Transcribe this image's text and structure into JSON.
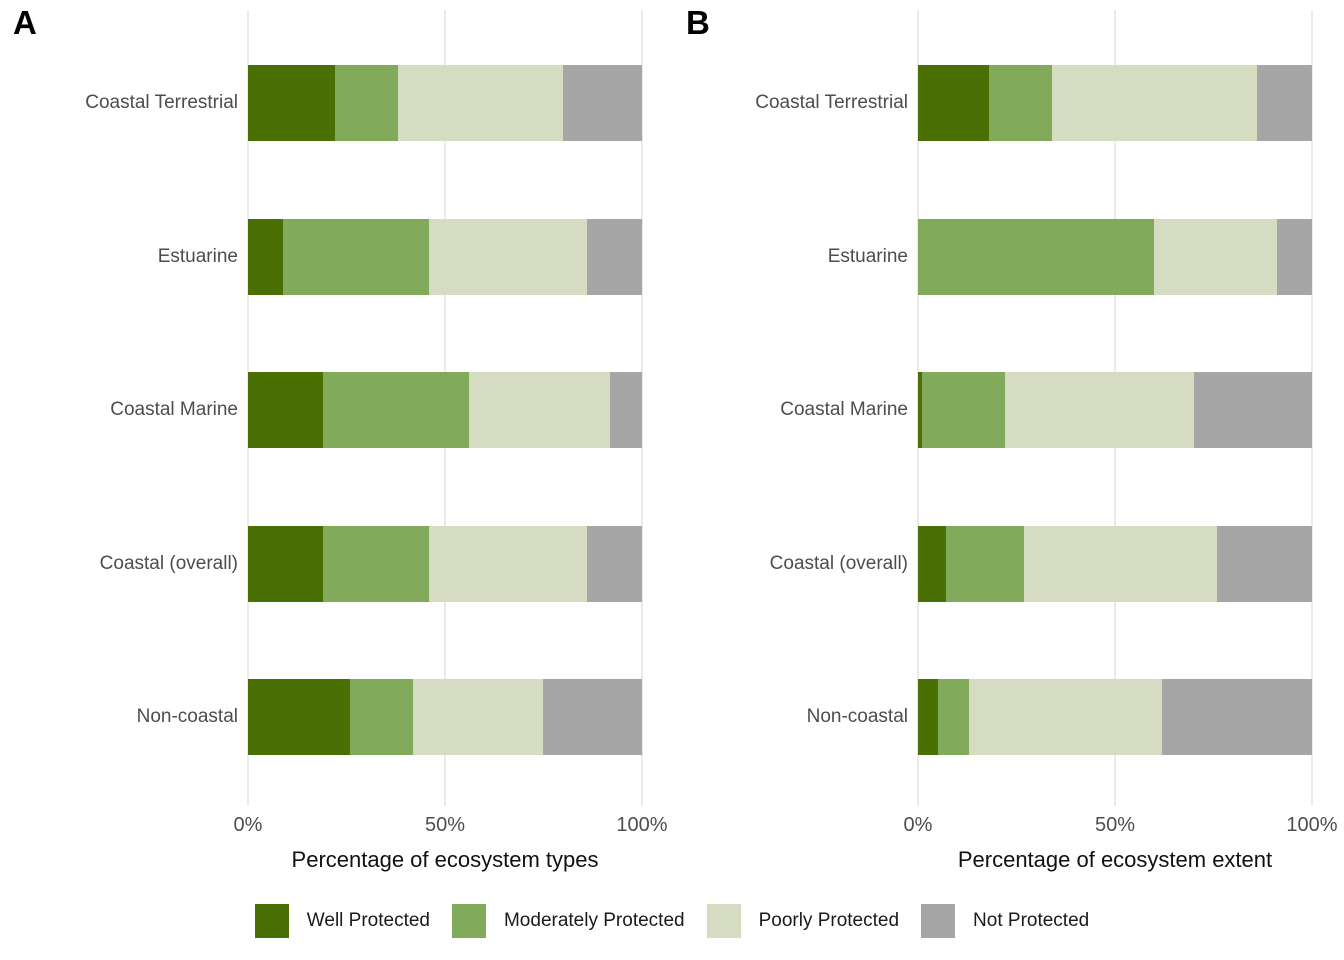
{
  "figure": {
    "tags": {
      "a": "A",
      "b": "B"
    },
    "background_color": "#FFFFFF",
    "gridline_color": "#EAEAEA",
    "axis_text_color": "#4D4D4D",
    "legend": [
      {
        "label": "Well Protected",
        "color": "#4A7003",
        "icon": "swatch-dark-green"
      },
      {
        "label": "Moderately Protected",
        "color": "#81AA5A",
        "icon": "swatch-medium-green"
      },
      {
        "label": "Poorly Protected",
        "color": "#D5DCC2",
        "icon": "swatch-light-green"
      },
      {
        "label": "Not Protected",
        "color": "#A6A6A6",
        "icon": "swatch-gray"
      }
    ]
  },
  "chart_data": [
    {
      "type": "bar",
      "panel_tag": "A",
      "orientation": "horizontal",
      "stacked": true,
      "stack_total": 100,
      "xlabel": "Percentage of ecosystem types",
      "ylabel": "",
      "xlim": [
        0,
        100
      ],
      "xticks": [
        {
          "value": 0,
          "label": "0%"
        },
        {
          "value": 50,
          "label": "50%"
        },
        {
          "value": 100,
          "label": "100%"
        }
      ],
      "grid": "major-vertical-only",
      "legend_position": "bottom-shared",
      "categories": [
        "Coastal Terrestrial",
        "Estuarine",
        "Coastal Marine",
        "Coastal (overall)",
        "Non-coastal"
      ],
      "series": [
        {
          "name": "Well Protected",
          "values": [
            22,
            9,
            19,
            19,
            26
          ]
        },
        {
          "name": "Moderately Protected",
          "values": [
            16,
            37,
            37,
            27,
            16
          ]
        },
        {
          "name": "Poorly Protected",
          "values": [
            42,
            40,
            36,
            40,
            33
          ]
        },
        {
          "name": "Not Protected",
          "values": [
            20,
            14,
            8,
            14,
            25
          ]
        }
      ]
    },
    {
      "type": "bar",
      "panel_tag": "B",
      "orientation": "horizontal",
      "stacked": true,
      "stack_total": 100,
      "xlabel": "Percentage of ecosystem extent",
      "ylabel": "",
      "xlim": [
        0,
        100
      ],
      "xticks": [
        {
          "value": 0,
          "label": "0%"
        },
        {
          "value": 50,
          "label": "50%"
        },
        {
          "value": 100,
          "label": "100%"
        }
      ],
      "grid": "major-vertical-only",
      "legend_position": "bottom-shared",
      "categories": [
        "Coastal Terrestrial",
        "Estuarine",
        "Coastal Marine",
        "Coastal (overall)",
        "Non-coastal"
      ],
      "series": [
        {
          "name": "Well Protected",
          "values": [
            18,
            0,
            1,
            7,
            5
          ]
        },
        {
          "name": "Moderately Protected",
          "values": [
            16,
            60,
            21,
            20,
            8
          ]
        },
        {
          "name": "Poorly Protected",
          "values": [
            52,
            31,
            48,
            49,
            49
          ]
        },
        {
          "name": "Not Protected",
          "values": [
            14,
            9,
            30,
            24,
            38
          ]
        }
      ]
    }
  ]
}
